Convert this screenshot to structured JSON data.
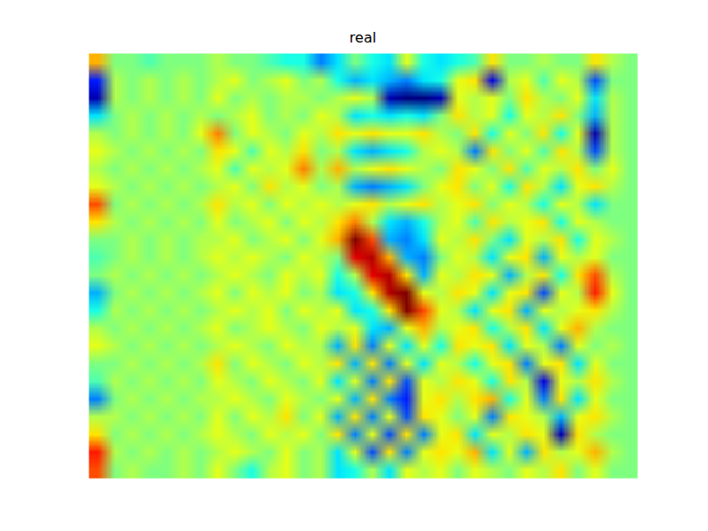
{
  "chart_data": {
    "type": "heatmap",
    "title": "real",
    "tick_labels": false,
    "zlim": [
      -1,
      1
    ],
    "cells": [
      [
        0.4,
        0,
        0,
        -0.1,
        0,
        0,
        0,
        0.1,
        0,
        0,
        -0.1,
        -0.2,
        -0.2,
        -0.5,
        -0.3,
        0,
        -0.2,
        -0.3,
        0.2,
        -0.2,
        -0.3,
        -0.2,
        -0.1,
        0.3,
        0,
        0,
        0.1,
        0,
        0,
        0.3,
        0.1,
        0
      ],
      [
        -0.7,
        0.1,
        0,
        0.1,
        0,
        0.1,
        0,
        0.1,
        0.2,
        0,
        0.1,
        0.2,
        0,
        0.1,
        -0.2,
        -0.4,
        -0.3,
        -0.4,
        -0.5,
        -0.3,
        -0.2,
        0.2,
        0.3,
        -0.8,
        0.1,
        0.2,
        -0.1,
        0.2,
        0.1,
        -0.6,
        0,
        0
      ],
      [
        -0.9,
        0.1,
        0,
        0.1,
        0,
        0.1,
        0,
        0.2,
        0,
        0.1,
        0,
        0.1,
        0.1,
        0,
        0.1,
        0.2,
        0.1,
        -0.9,
        -1.0,
        -1.0,
        -0.9,
        0.2,
        0.1,
        0.2,
        0,
        0.3,
        0.1,
        0,
        0.2,
        -0.3,
        0.1,
        0
      ],
      [
        -0.3,
        0,
        0.1,
        0,
        0.1,
        0,
        0.1,
        0,
        0.1,
        0.2,
        0,
        0.1,
        0,
        0.2,
        0.1,
        -0.3,
        -0.2,
        -0.3,
        -0.2,
        -0.3,
        0,
        0.3,
        0.1,
        0.2,
        -0.2,
        0.2,
        0.1,
        0.3,
        0,
        -0.4,
        0.1,
        0
      ],
      [
        0.1,
        0,
        0.1,
        0,
        0.1,
        0,
        0.2,
        0.5,
        0,
        0.2,
        0.1,
        0,
        0.2,
        0.1,
        0.3,
        0.2,
        0.3,
        0.2,
        0.2,
        0.3,
        0.1,
        0,
        0.3,
        -0.2,
        0.2,
        0,
        0.3,
        -0.2,
        0.2,
        -0.9,
        0.1,
        0
      ],
      [
        0.2,
        0.1,
        0,
        0.1,
        0,
        0.1,
        0,
        0.3,
        0.2,
        -0.1,
        0.2,
        0.1,
        0.3,
        0,
        0.1,
        -0.3,
        -0.4,
        -0.3,
        -0.2,
        0.1,
        0.2,
        0.1,
        -0.5,
        0.3,
        0,
        0.2,
        -0.1,
        0.3,
        0.1,
        -0.6,
        0.1,
        0
      ],
      [
        0.1,
        0,
        0.1,
        0,
        0.1,
        0,
        0.1,
        0.2,
        -0.1,
        0.2,
        0.1,
        0.2,
        0.5,
        0.1,
        0.4,
        0.1,
        0.2,
        0.3,
        0.2,
        0.1,
        0,
        0.3,
        0.2,
        0,
        0.3,
        -0.1,
        0.2,
        0.1,
        0.3,
        0,
        0.2,
        0
      ],
      [
        0.2,
        0.1,
        0,
        0.1,
        0,
        0.1,
        0,
        0.1,
        0.2,
        0,
        0.3,
        0.1,
        0.2,
        0,
        0.1,
        -0.4,
        -0.5,
        -0.4,
        -0.3,
        0,
        0.2,
        0.3,
        0,
        0.2,
        -0.2,
        0.3,
        0.1,
        -0.3,
        0.2,
        0.3,
        0.1,
        0
      ],
      [
        0.6,
        0,
        0.1,
        0,
        0.1,
        0,
        0.1,
        0.3,
        0.1,
        0.2,
        0,
        0.2,
        0.1,
        0.2,
        0.1,
        0.2,
        0.3,
        0.1,
        0.2,
        0.3,
        0.1,
        0.2,
        0.3,
        0,
        0.2,
        0.1,
        -0.2,
        0.2,
        0.1,
        -0.3,
        0,
        0
      ],
      [
        0.3,
        0.1,
        0,
        0.1,
        0,
        0.1,
        0,
        0.2,
        0,
        0.1,
        0.2,
        0,
        0.2,
        0.1,
        0.3,
        0.5,
        0.1,
        -0.3,
        -0.4,
        -0.2,
        0.1,
        0.2,
        -0.1,
        0.3,
        0.1,
        0.2,
        0.3,
        -0.2,
        0.2,
        0.1,
        0,
        0
      ],
      [
        0,
        0,
        0.1,
        0,
        0.1,
        0,
        0.1,
        0.1,
        0.2,
        0,
        0.1,
        0.2,
        0,
        0.2,
        0.4,
        1.0,
        0.6,
        -0.4,
        -0.5,
        -0.3,
        0.2,
        0.1,
        0.3,
        0,
        -0.3,
        0.2,
        0.1,
        0.3,
        -0.2,
        0.2,
        0.1,
        0
      ],
      [
        -0.1,
        0,
        0.1,
        0,
        0.1,
        0,
        0.1,
        0.2,
        0.1,
        0.2,
        0.1,
        0,
        0.2,
        0.1,
        0,
        0.8,
        0.9,
        0.4,
        -0.4,
        -0.5,
        0,
        0.2,
        0.1,
        -0.3,
        0.2,
        0.3,
        -0.4,
        0.2,
        0.1,
        0.2,
        0,
        0
      ],
      [
        0,
        0.1,
        0,
        0.1,
        0,
        0.1,
        0,
        0.1,
        0.2,
        0.1,
        0,
        0.2,
        0.1,
        0.2,
        -0.2,
        0.1,
        0.8,
        0.9,
        0.3,
        -0.4,
        0.2,
        0.1,
        0.3,
        0.2,
        -0.4,
        0.1,
        0.3,
        -0.2,
        0.3,
        0.6,
        0.1,
        0
      ],
      [
        -0.4,
        0,
        0.1,
        0,
        0.1,
        0,
        0.1,
        0.2,
        0,
        0.2,
        0.1,
        0.2,
        0,
        0.1,
        -0.3,
        -0.2,
        0.3,
        0.9,
        1.0,
        0.2,
        0.1,
        0.3,
        0.2,
        -0.3,
        0.2,
        0.3,
        -0.6,
        0.2,
        0.1,
        0.7,
        0.2,
        0
      ],
      [
        -0.2,
        0.1,
        0,
        0.1,
        0,
        0.1,
        0,
        0.1,
        0.2,
        0.1,
        0.2,
        0,
        0.2,
        0.1,
        0.2,
        -0.3,
        -0.2,
        0.3,
        1.0,
        0.6,
        0.2,
        0.1,
        -0.3,
        0.2,
        0.3,
        -0.4,
        0.2,
        0.1,
        0.2,
        0.3,
        0.1,
        0
      ],
      [
        0.1,
        0,
        0.1,
        0,
        0.1,
        0,
        0.1,
        0.2,
        0,
        0.1,
        0.2,
        0.1,
        0,
        0.2,
        0.1,
        0.2,
        -0.3,
        -0.4,
        0.2,
        0.4,
        0.1,
        0.2,
        0.3,
        -0.2,
        0.1,
        0.3,
        -0.3,
        0.2,
        0.4,
        0.1,
        0,
        0
      ],
      [
        0.2,
        0.1,
        0,
        0.1,
        0,
        0.1,
        0,
        0.1,
        0.2,
        0.1,
        0,
        0.2,
        0.1,
        0.1,
        -0.4,
        0.3,
        -0.5,
        0.2,
        -0.3,
        0.2,
        -0.2,
        0.3,
        0.2,
        0.3,
        -0.3,
        0.2,
        0.1,
        -0.5,
        0.2,
        0,
        0.1,
        0
      ],
      [
        0,
        0,
        0.1,
        0,
        0.1,
        0,
        0.1,
        0.3,
        0,
        0.2,
        0.1,
        0,
        0.2,
        0.1,
        0.3,
        -0.4,
        0.3,
        -0.5,
        0.2,
        -0.3,
        0.2,
        0.1,
        -0.2,
        0.2,
        0.3,
        -0.5,
        0.2,
        0.3,
        -0.3,
        0.2,
        0,
        0
      ],
      [
        -0.1,
        0.1,
        0,
        0.1,
        0,
        0.1,
        0,
        0.2,
        0.1,
        0,
        0.2,
        0.1,
        0,
        0.2,
        -0.3,
        0.2,
        -0.5,
        0.3,
        -0.6,
        0.2,
        0.1,
        0.3,
        0.2,
        -0.2,
        0.3,
        0.1,
        -0.8,
        0.2,
        0.1,
        0.3,
        0.1,
        0
      ],
      [
        -0.5,
        0,
        0.1,
        0,
        0.1,
        0,
        0.1,
        0.1,
        0.2,
        0.1,
        0,
        0.2,
        0.1,
        0,
        0.2,
        -0.4,
        0.3,
        -0.5,
        -0.7,
        0.2,
        0.3,
        0.1,
        0.3,
        0.4,
        -0.2,
        0.2,
        -0.5,
        0.3,
        -0.3,
        0.2,
        0,
        0
      ],
      [
        0.1,
        0.1,
        0,
        0.1,
        0,
        0.1,
        0,
        0.2,
        0,
        0.2,
        0.1,
        0.3,
        0,
        0.2,
        -0.4,
        0.3,
        -0.5,
        0.2,
        -0.6,
        0.3,
        0.2,
        0,
        0.2,
        -0.5,
        0.3,
        0.2,
        0.1,
        -0.4,
        0.2,
        0.3,
        0.1,
        0
      ],
      [
        0.3,
        0,
        0.1,
        0,
        0.1,
        0,
        0.1,
        0.2,
        0.1,
        0,
        0.2,
        0.1,
        0.2,
        0,
        0.3,
        -0.5,
        0.2,
        -0.6,
        0.3,
        -0.5,
        0.2,
        0.3,
        -0.3,
        0.2,
        0.1,
        0.3,
        0.2,
        -0.9,
        0.3,
        0.1,
        0,
        0
      ],
      [
        0.7,
        0.1,
        0,
        0.1,
        0,
        0.1,
        0,
        0.1,
        0.2,
        0.1,
        0,
        0.2,
        0,
        0.1,
        -0.3,
        0.2,
        -0.6,
        0.3,
        -0.5,
        0.2,
        0.3,
        0.2,
        0.4,
        -0.3,
        0.2,
        -0.4,
        0.3,
        0.1,
        0.2,
        0.4,
        0.1,
        0
      ],
      [
        0.6,
        0,
        0.1,
        0,
        0,
        0.1,
        0,
        0.2,
        0,
        -0.2,
        0.1,
        0.2,
        0,
        0.1,
        -0.3,
        -0.2,
        0.1,
        -0.3,
        0.2,
        0.1,
        0.2,
        0,
        0.2,
        0.1,
        0,
        0.2,
        0.1,
        0.3,
        0,
        0.2,
        0,
        0
      ]
    ]
  }
}
